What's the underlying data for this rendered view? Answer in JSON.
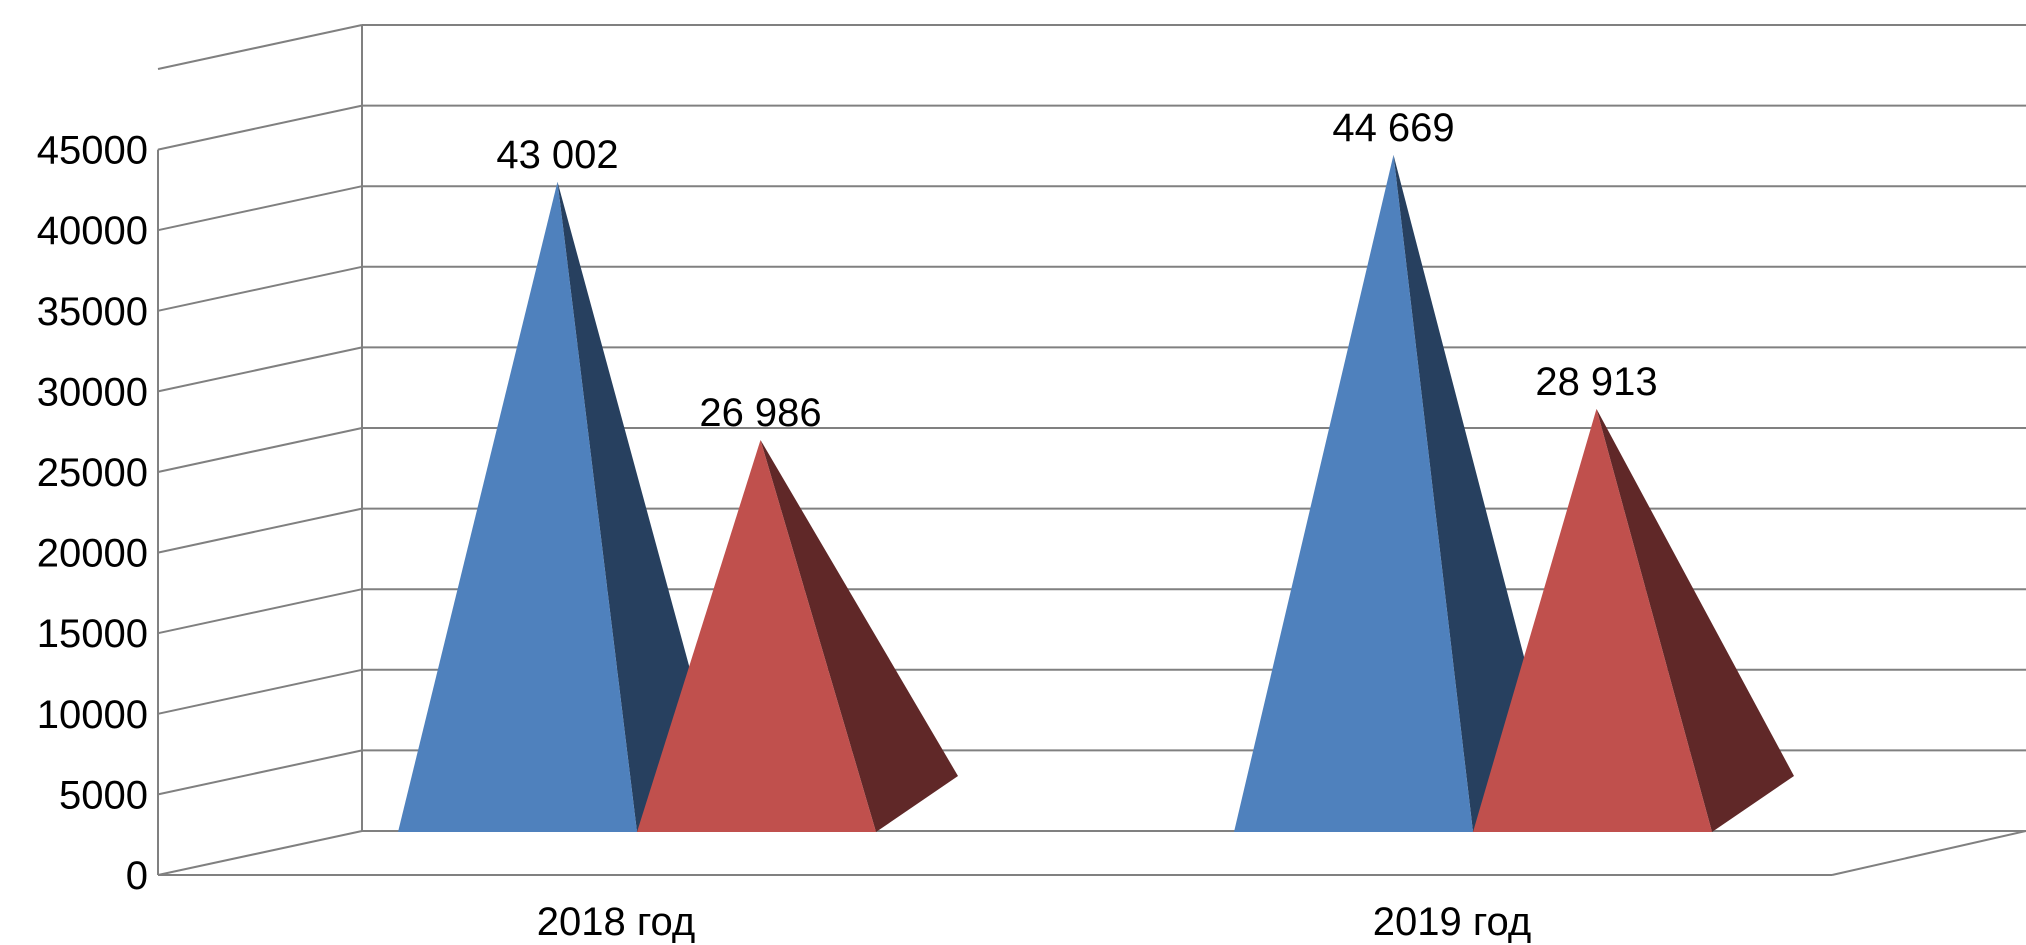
{
  "chart_data": {
    "type": "bar",
    "style": "3d-pyramid",
    "categories": [
      "2018 год",
      "2019 год"
    ],
    "series": [
      {
        "values": [
          43002,
          44669
        ],
        "value_labels": [
          "43 002",
          "44 669"
        ],
        "color": "#4F81BD",
        "shade": "#27405F"
      },
      {
        "values": [
          26986,
          28913
        ],
        "value_labels": [
          "26 986",
          "28 913"
        ],
        "color": "#C0504D",
        "shade": "#602828"
      }
    ],
    "yticks": [
      "0",
      "5000",
      "10000",
      "15000",
      "20000",
      "25000",
      "30000",
      "35000",
      "40000",
      "45000"
    ],
    "ylim": [
      0,
      50000
    ],
    "grid": true,
    "legend": "none"
  }
}
